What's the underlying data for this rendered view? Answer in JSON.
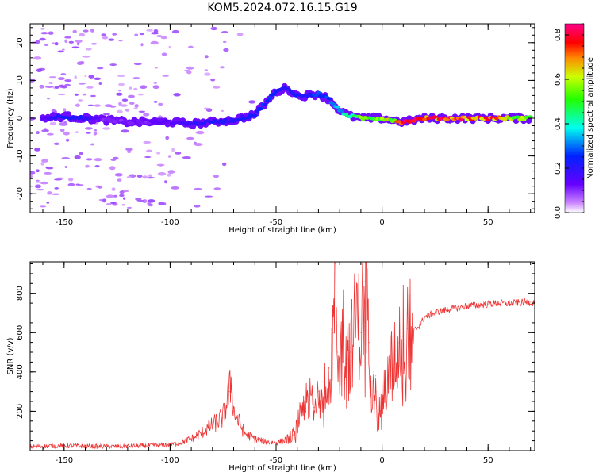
{
  "title": "KOM5.2024.072.16.15.G19",
  "chart_data": [
    {
      "type": "heatmap",
      "xlabel": "Height of straight line (km)",
      "ylabel": "Frequency (Hz)",
      "xlim": [
        -166,
        72
      ],
      "ylim": [
        -25,
        25
      ],
      "xticks": [
        -150,
        -100,
        -50,
        0,
        50
      ],
      "yticks": [
        -20,
        -10,
        0,
        10,
        20
      ],
      "colorbar": {
        "label": "Normalized spectral amplitude",
        "range": [
          0.0,
          0.85
        ],
        "ticks": [
          0.0,
          0.2,
          0.4,
          0.6,
          0.8
        ],
        "colormap": "gist_rainbow_r"
      },
      "ridge": {
        "x": [
          -160,
          -150,
          -140,
          -130,
          -120,
          -110,
          -100,
          -90,
          -80,
          -70,
          -60,
          -55,
          -50,
          -45,
          -40,
          -35,
          -30,
          -25,
          -20,
          -15,
          -10,
          -5,
          0,
          5,
          10,
          20,
          30,
          40,
          50,
          60,
          70
        ],
        "y": [
          0,
          0.5,
          0,
          -0.5,
          -1,
          -1,
          -1,
          -1.5,
          -1,
          -0.5,
          1,
          4,
          7,
          8,
          6,
          6,
          6.5,
          5,
          2,
          0.5,
          0,
          0,
          0,
          -0.5,
          -1,
          0,
          0,
          0,
          0,
          0,
          0
        ],
        "amplitude": [
          0.15,
          0.25,
          0.2,
          0.1,
          0.12,
          0.12,
          0.15,
          0.2,
          0.22,
          0.2,
          0.25,
          0.25,
          0.25,
          0.2,
          0.25,
          0.25,
          0.3,
          0.3,
          0.35,
          0.45,
          0.55,
          0.5,
          0.6,
          0.6,
          0.8,
          0.75,
          0.8,
          0.75,
          0.75,
          0.6,
          0.55
        ]
      }
    },
    {
      "type": "line",
      "xlabel": "Height of straight line (km)",
      "ylabel": "SNR (v/v)",
      "xlim": [
        -166,
        72
      ],
      "ylim": [
        0,
        960
      ],
      "xticks": [
        -150,
        -100,
        -50,
        0,
        50
      ],
      "yticks": [
        200,
        400,
        600,
        800
      ],
      "color": "#ee3333",
      "series": [
        {
          "x": [
            -166,
            -150,
            -130,
            -110,
            -100,
            -95,
            -90,
            -85,
            -80,
            -75,
            -72,
            -71,
            -70,
            -65,
            -60,
            -55,
            -50,
            -45,
            -42,
            -40,
            -38,
            -35,
            -32,
            -30,
            -28,
            -25,
            -23,
            -22,
            -21,
            -20,
            -18,
            -15,
            -12,
            -10,
            -8,
            -6,
            -5,
            -4,
            -3,
            -2,
            -1,
            0,
            2,
            5,
            8,
            10,
            12,
            15,
            18,
            20,
            25,
            30,
            35,
            40,
            45,
            50,
            55,
            60,
            65,
            70,
            72
          ],
          "y": [
            20,
            25,
            20,
            25,
            30,
            40,
            60,
            90,
            130,
            170,
            300,
            360,
            200,
            90,
            60,
            45,
            40,
            55,
            80,
            130,
            220,
            280,
            220,
            300,
            350,
            420,
            600,
            950,
            500,
            450,
            650,
            500,
            700,
            600,
            860,
            550,
            350,
            400,
            380,
            300,
            200,
            250,
            350,
            450,
            550,
            600,
            620,
            610,
            640,
            680,
            700,
            715,
            725,
            735,
            740,
            745,
            750,
            748,
            752,
            755,
            750
          ]
        }
      ]
    }
  ]
}
